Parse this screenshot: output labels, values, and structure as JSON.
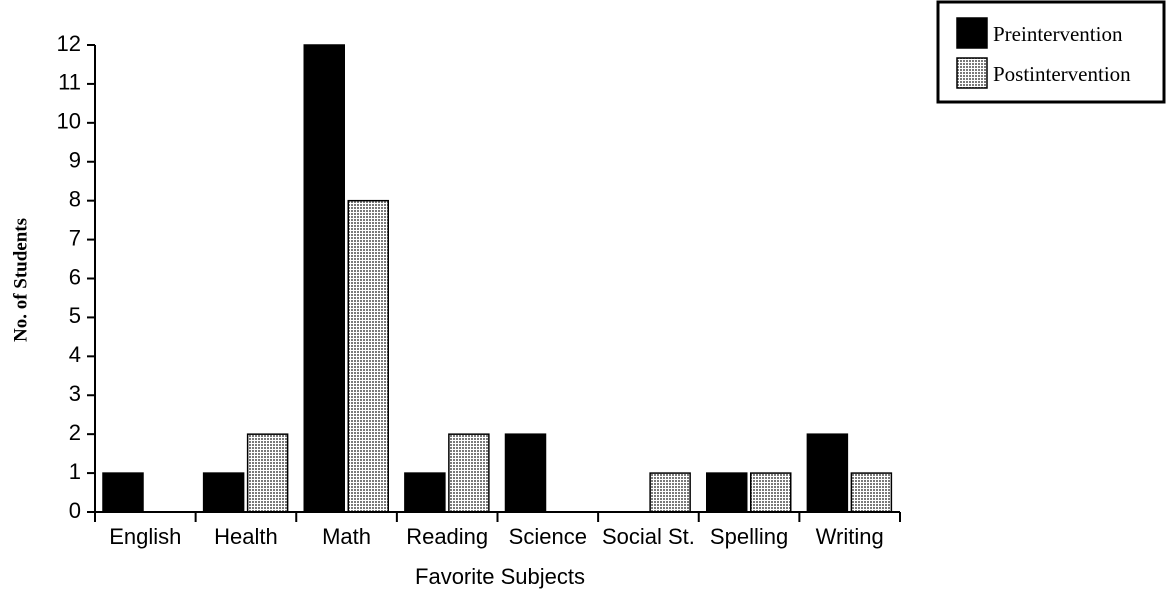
{
  "chart_data": {
    "type": "bar",
    "xlabel": "Favorite Subjects",
    "ylabel": "No. of Students",
    "categories": [
      "English",
      "Health",
      "Math",
      "Reading",
      "Science",
      "Social St.",
      "Spelling",
      "Writing"
    ],
    "series": [
      {
        "name": "Preintervention",
        "color": "#000000",
        "values": [
          1,
          1,
          12,
          1,
          2,
          0,
          1,
          2
        ]
      },
      {
        "name": "Postintervention",
        "color": "#7a7a7a",
        "values": [
          0,
          2,
          8,
          2,
          0,
          1,
          1,
          1
        ]
      }
    ],
    "ylim": [
      0,
      12
    ],
    "yticks": [
      0,
      1,
      2,
      3,
      4,
      5,
      6,
      7,
      8,
      9,
      10,
      11,
      12
    ],
    "legend": "upper right"
  }
}
